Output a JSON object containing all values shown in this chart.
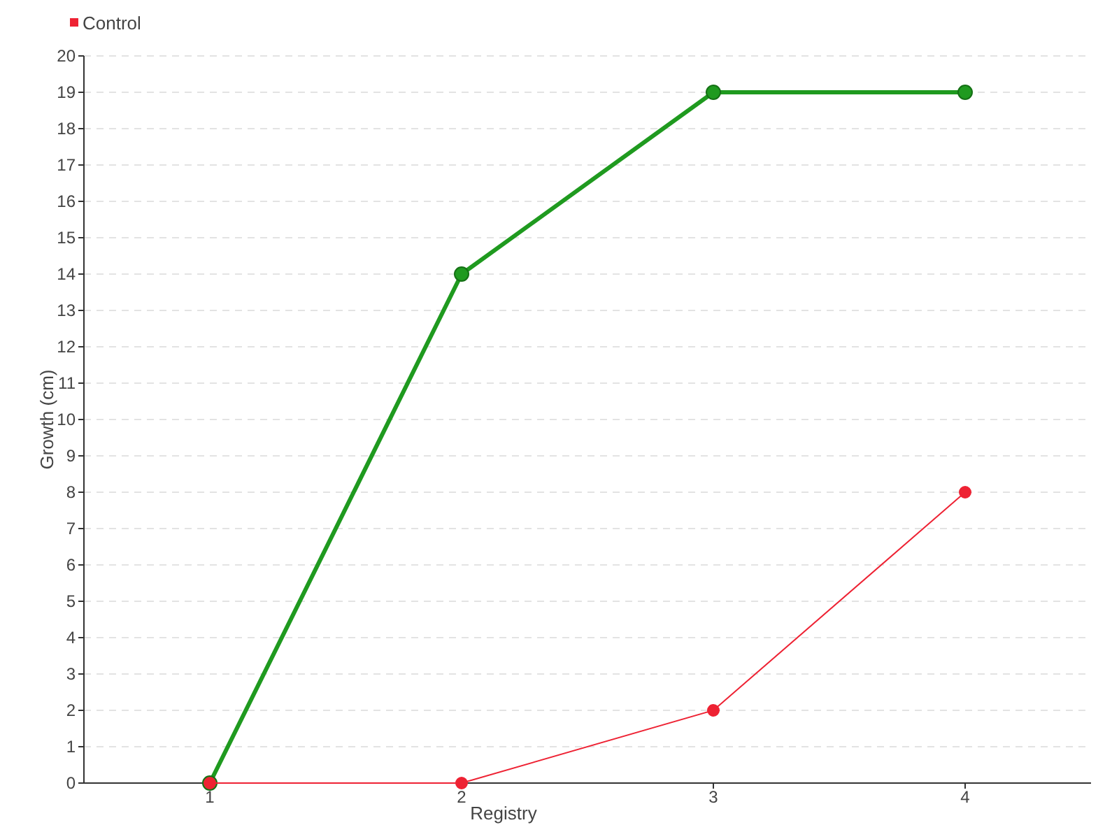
{
  "chart_data": {
    "type": "line",
    "xlabel": "Registry",
    "ylabel": "Growth (cm)",
    "categories": [
      "1",
      "2",
      "3",
      "4"
    ],
    "series": [
      {
        "color": "#1f9a1f",
        "values": [
          0,
          14,
          19,
          19
        ]
      },
      {
        "name": "Control",
        "color": "#ee2233",
        "values": [
          0,
          0,
          2,
          8
        ]
      }
    ],
    "ylim": [
      0,
      20
    ],
    "yticks": [
      0,
      1,
      2,
      3,
      4,
      5,
      6,
      7,
      8,
      9,
      10,
      11,
      12,
      13,
      14,
      15,
      16,
      17,
      18,
      19,
      20
    ],
    "grid": "y",
    "legend": "top left",
    "marker": "circle",
    "line_style": "solid"
  }
}
